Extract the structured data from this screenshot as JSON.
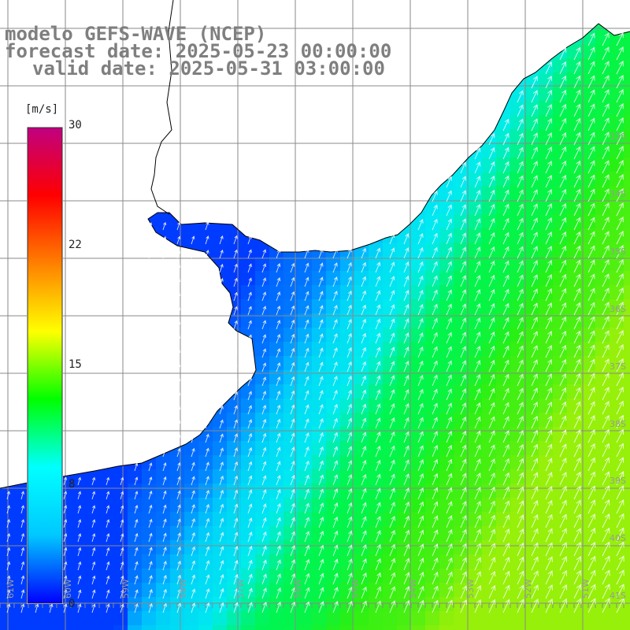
{
  "title": {
    "line1": "modelo GEFS-WAVE (NCEP)",
    "line2": "forecast date: 2025-05-23 00:00:00",
    "line3": "valid date: 2025-05-31 03:00:00"
  },
  "colorbar": {
    "unit": "[m/s]",
    "min": 0,
    "max": 30,
    "tick_labels": [
      "30",
      "22",
      "15",
      "8",
      "0"
    ],
    "tick_values": [
      30,
      22,
      15,
      8,
      0
    ],
    "colors": [
      "#0000ff",
      "#00c8ff",
      "#00ffff",
      "#00ff00",
      "#ffff00",
      "#ff8000",
      "#ff0000",
      "#c00080"
    ]
  },
  "lat_labels": [
    "33S",
    "34S",
    "35S",
    "36S",
    "37S",
    "38S",
    "39S",
    "40S",
    "41S"
  ],
  "lon_labels": [
    "61W",
    "60W",
    "59W",
    "58W",
    "57W",
    "56W",
    "55W",
    "54W",
    "53W",
    "52W",
    "51W"
  ],
  "colors": {
    "land": "#ffffff",
    "coast": "#000000",
    "grid": "#8a8a8a",
    "arrows": "#ffffff",
    "header_text": "#7f7f7f"
  },
  "icons": [
    "wind-arrow-icon"
  ]
}
